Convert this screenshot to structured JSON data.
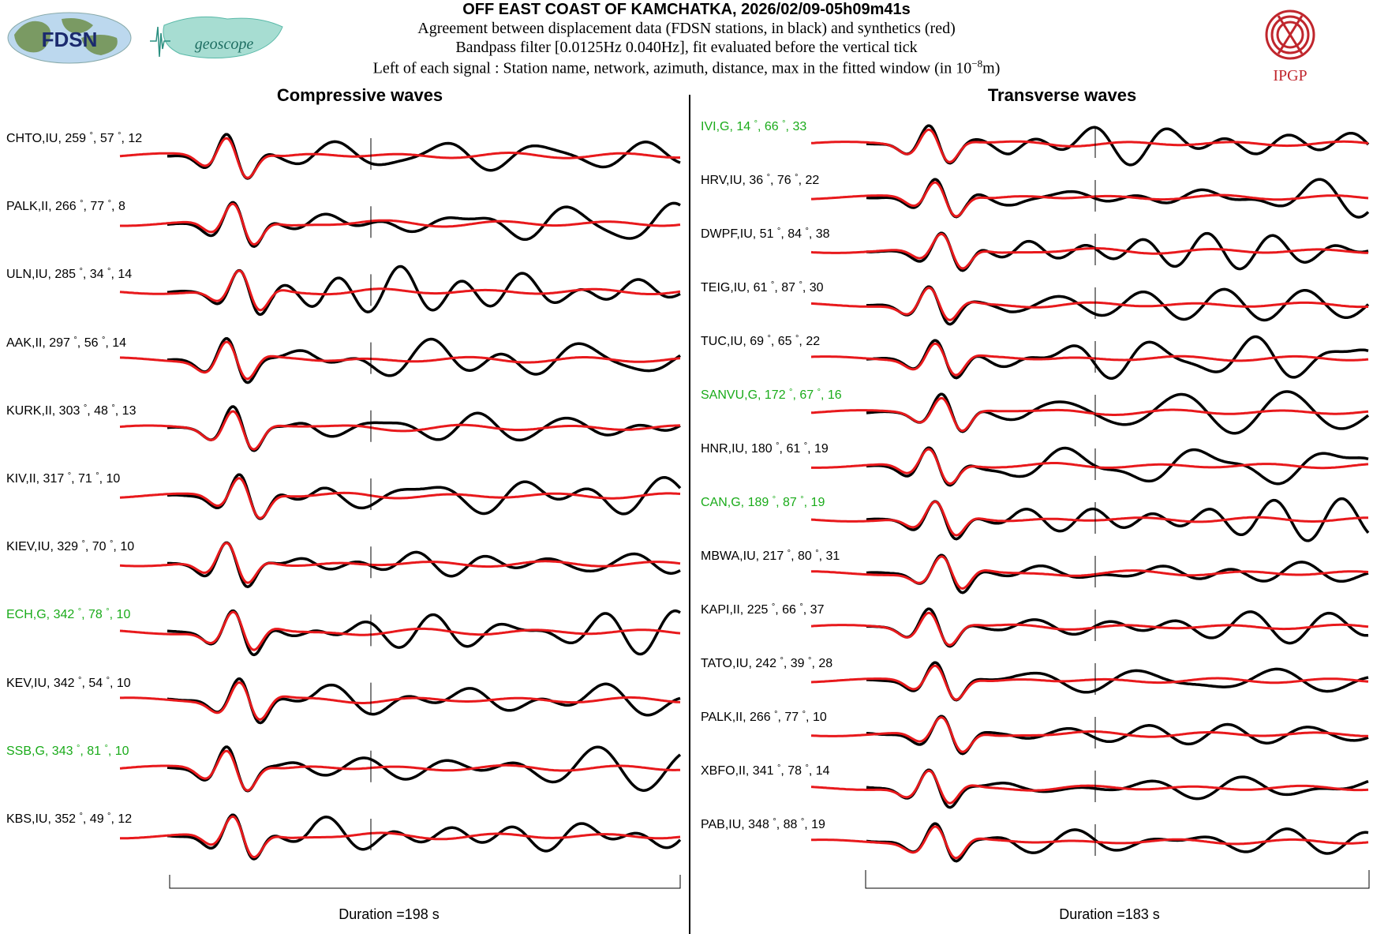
{
  "header": {
    "title": "OFF EAST COAST OF KAMCHATKA, 2026/02/09-05h09m41s",
    "line1": "Agreement between displacement data (FDSN stations, in black) and synthetics (red)",
    "line2": "Bandpass filter [0.0125Hz 0.040Hz], fit evaluated before the vertical tick",
    "line3_prefix": "Left of each signal : Station name, network, azimuth, distance, max in the fitted window (in 10",
    "line3_exp": "−8",
    "line3_suffix": "m)"
  },
  "logos": {
    "fdsn": "FDSN",
    "geoscope": "geoscope",
    "ipgp": "IPGP",
    "ipgp_color": "#c0262d"
  },
  "colors": {
    "data": "#000000",
    "synthetic": "#e8191c",
    "green_station": "#1aab1a",
    "black_station": "#000000"
  },
  "chart_data": [
    {
      "type": "line",
      "title": "Compressive waves",
      "xlabel": "Duration =198 s",
      "duration_s": 198,
      "series_legend": [
        "data (black)",
        "synthetics (red)"
      ],
      "stations": [
        {
          "name": "CHTO",
          "net": "IU",
          "az": 259,
          "dist": 57,
          "max": 12,
          "green": false
        },
        {
          "name": "PALK",
          "net": "II",
          "az": 266,
          "dist": 77,
          "max": 8,
          "green": false
        },
        {
          "name": "ULN",
          "net": "IU",
          "az": 285,
          "dist": 34,
          "max": 14,
          "green": false
        },
        {
          "name": "AAK",
          "net": "II",
          "az": 297,
          "dist": 56,
          "max": 14,
          "green": false
        },
        {
          "name": "KURK",
          "net": "II",
          "az": 303,
          "dist": 48,
          "max": 13,
          "green": false
        },
        {
          "name": "KIV",
          "net": "II",
          "az": 317,
          "dist": 71,
          "max": 10,
          "green": false
        },
        {
          "name": "KIEV",
          "net": "IU",
          "az": 329,
          "dist": 70,
          "max": 10,
          "green": false
        },
        {
          "name": "ECH",
          "net": "G",
          "az": 342,
          "dist": 78,
          "max": 10,
          "green": true
        },
        {
          "name": "KEV",
          "net": "IU",
          "az": 342,
          "dist": 54,
          "max": 10,
          "green": false
        },
        {
          "name": "SSB",
          "net": "G",
          "az": 343,
          "dist": 81,
          "max": 10,
          "green": true
        },
        {
          "name": "KBS",
          "net": "IU",
          "az": 352,
          "dist": 49,
          "max": 12,
          "green": false
        }
      ]
    },
    {
      "type": "line",
      "title": "Transverse waves",
      "xlabel": "Duration =183 s",
      "duration_s": 183,
      "series_legend": [
        "data (black)",
        "synthetics (red)"
      ],
      "stations": [
        {
          "name": "IVI",
          "net": "G",
          "az": 14,
          "dist": 66,
          "max": 33,
          "green": true
        },
        {
          "name": "HRV",
          "net": "IU",
          "az": 36,
          "dist": 76,
          "max": 22,
          "green": false
        },
        {
          "name": "DWPF",
          "net": "IU",
          "az": 51,
          "dist": 84,
          "max": 38,
          "green": false
        },
        {
          "name": "TEIG",
          "net": "IU",
          "az": 61,
          "dist": 87,
          "max": 30,
          "green": false
        },
        {
          "name": "TUC",
          "net": "IU",
          "az": 69,
          "dist": 65,
          "max": 22,
          "green": false
        },
        {
          "name": "SANVU",
          "net": "G",
          "az": 172,
          "dist": 67,
          "max": 16,
          "green": true
        },
        {
          "name": "HNR",
          "net": "IU",
          "az": 180,
          "dist": 61,
          "max": 19,
          "green": false
        },
        {
          "name": "CAN",
          "net": "G",
          "az": 189,
          "dist": 87,
          "max": 19,
          "green": true
        },
        {
          "name": "MBWA",
          "net": "IU",
          "az": 217,
          "dist": 80,
          "max": 31,
          "green": false
        },
        {
          "name": "KAPI",
          "net": "II",
          "az": 225,
          "dist": 66,
          "max": 37,
          "green": false
        },
        {
          "name": "TATO",
          "net": "IU",
          "az": 242,
          "dist": 39,
          "max": 28,
          "green": false
        },
        {
          "name": "PALK",
          "net": "II",
          "az": 266,
          "dist": 77,
          "max": 10,
          "green": false
        },
        {
          "name": "XBFO",
          "net": "II",
          "az": 341,
          "dist": 78,
          "max": 14,
          "green": false
        },
        {
          "name": "PAB",
          "net": "IU",
          "az": 348,
          "dist": 88,
          "max": 19,
          "green": false
        }
      ]
    }
  ]
}
